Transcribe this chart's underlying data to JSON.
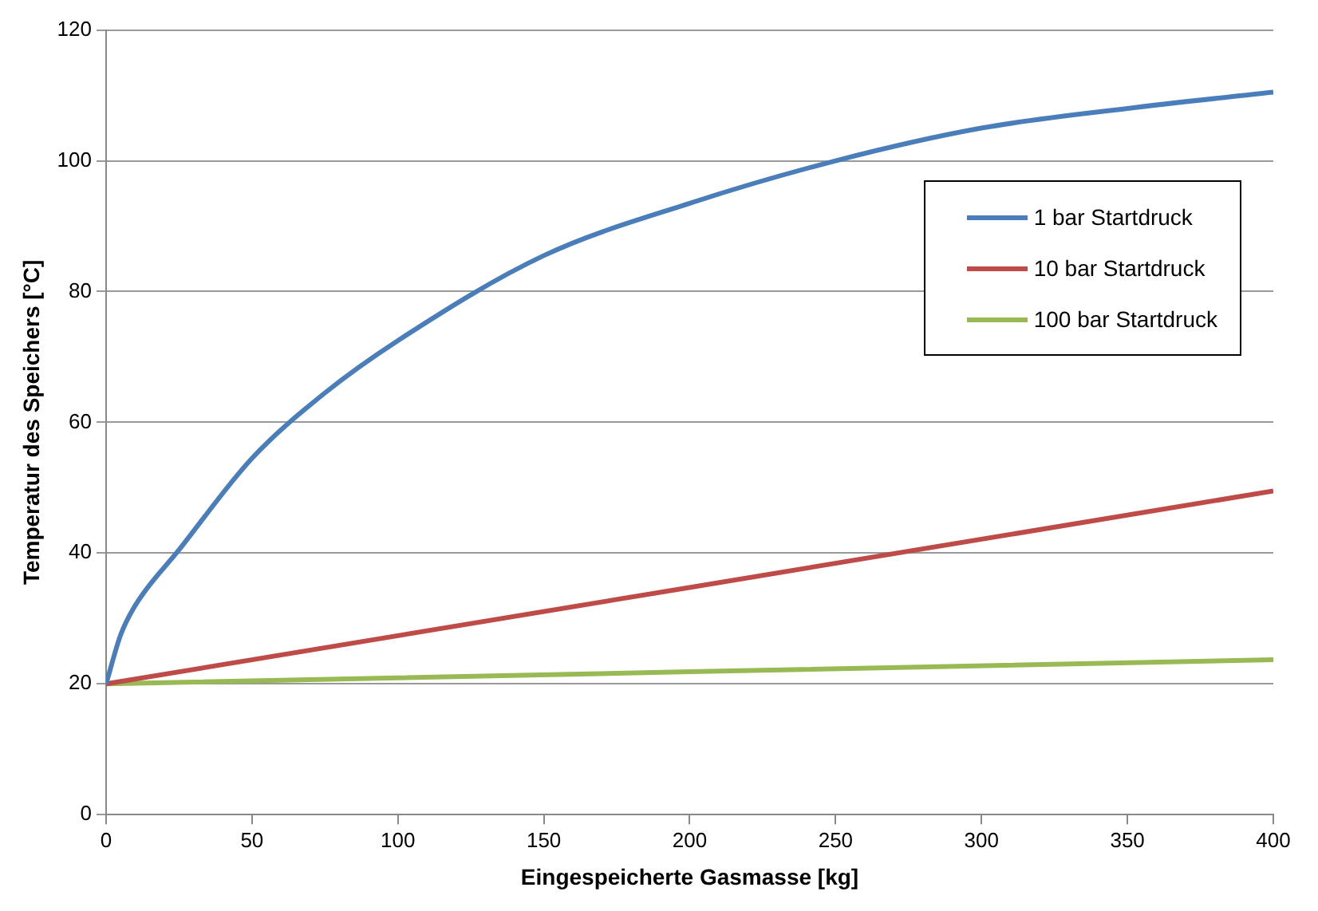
{
  "chart_data": {
    "type": "line",
    "xlabel": "Eingespeicherte Gasmasse [kg]",
    "ylabel": "Temperatur des Speichers [°C]",
    "xlim": [
      0,
      400
    ],
    "xticks": [
      0,
      50,
      100,
      150,
      200,
      250,
      300,
      350,
      400
    ],
    "ylim": [
      0,
      120
    ],
    "yticks": [
      0,
      20,
      40,
      60,
      80,
      100,
      120
    ],
    "grid": "y",
    "legend": "top right",
    "marker": "none",
    "line_style": "solid",
    "series": [
      {
        "name": "1 bar Startdruck",
        "color": "#4a7ebb",
        "x": [
          0,
          5,
          10,
          25,
          50,
          75,
          100,
          150,
          200,
          250,
          300,
          350,
          400
        ],
        "values": [
          20,
          27.5,
          32,
          40.5,
          54.5,
          64.5,
          72.5,
          85.5,
          93.5,
          100,
          105,
          108,
          110.5
        ]
      },
      {
        "name": "10 bar Startdruck",
        "color": "#be4b48",
        "x": [
          0,
          400
        ],
        "values": [
          20,
          49.5
        ]
      },
      {
        "name": "100 bar Startdruck",
        "color": "#98b954",
        "x": [
          0,
          400
        ],
        "values": [
          20,
          23.7
        ]
      }
    ]
  }
}
